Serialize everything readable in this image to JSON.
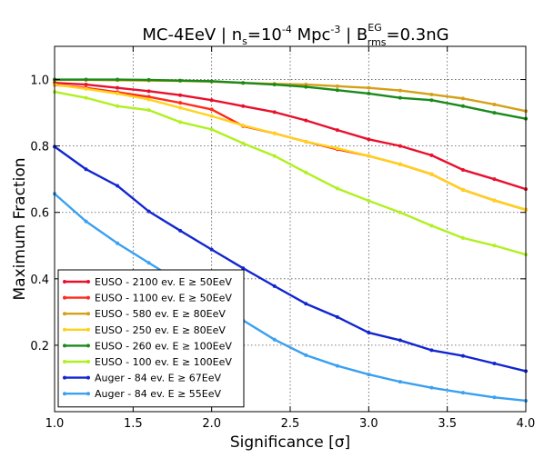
{
  "chart_data": {
    "type": "line",
    "title": {
      "prefix": "MC-4EeV | n",
      "n_sub": "s",
      "mid1": "=10",
      "exp": "-4",
      "mid2": " Mpc",
      "unit_exp": "-3",
      "mid3": "  | B",
      "b_sup": "EG",
      "b_sub": "rms",
      "suffix": "=0.3nG"
    },
    "xlabel": "Significance [σ]",
    "ylabel": "Maximum Fraction",
    "xlim": [
      1.0,
      4.0
    ],
    "ylim": [
      0.0,
      1.1
    ],
    "xticks": [
      1.0,
      1.5,
      2.0,
      2.5,
      3.0,
      3.5,
      4.0
    ],
    "xtick_labels": [
      "1.0",
      "1.5",
      "2.0",
      "2.5",
      "3.0",
      "3.5",
      "4.0"
    ],
    "yticks": [
      0.2,
      0.4,
      0.6,
      0.8,
      1.0
    ],
    "ytick_labels": [
      "0.2",
      "0.4",
      "0.6",
      "0.8",
      "1.0"
    ],
    "grid": true,
    "legend_position": "bottom-left",
    "x": [
      1.0,
      1.2,
      1.4,
      1.6,
      1.8,
      2.0,
      2.2,
      2.4,
      2.6,
      2.8,
      3.0,
      3.2,
      3.4,
      3.6,
      3.8,
      4.0
    ],
    "series": [
      {
        "name": "EUSO - 2100 ev. E  ≥ 50EeV",
        "color": "#e8112d",
        "values": [
          0.99,
          0.985,
          0.975,
          0.965,
          0.953,
          0.938,
          0.92,
          0.902,
          0.877,
          0.848,
          0.82,
          0.8,
          0.772,
          0.728,
          0.7,
          0.67
        ]
      },
      {
        "name": "EUSO - 1100 ev. E  ≥ 50EeV",
        "color": "#ff2a1a",
        "values": [
          0.984,
          0.975,
          0.962,
          0.948,
          0.93,
          0.91,
          0.86,
          0.838,
          0.813,
          0.79,
          0.77,
          0.745,
          0.715,
          0.668,
          0.636,
          0.608
        ]
      },
      {
        "name": "EUSO - 580 ev. E  ≥ 80EeV",
        "color": "#d4a017",
        "values": [
          0.999,
          0.999,
          0.998,
          0.997,
          0.996,
          0.994,
          0.99,
          0.987,
          0.985,
          0.98,
          0.975,
          0.967,
          0.955,
          0.943,
          0.925,
          0.905
        ]
      },
      {
        "name": "EUSO - 250 ev. E  ≥ 80EeV",
        "color": "#ffd21a",
        "values": [
          0.985,
          0.972,
          0.958,
          0.94,
          0.915,
          0.89,
          0.862,
          0.838,
          0.813,
          0.793,
          0.77,
          0.745,
          0.715,
          0.668,
          0.636,
          0.608
        ]
      },
      {
        "name": "EUSO - 260 ev. E  ≥ 100EeV",
        "color": "#1a8a1a",
        "values": [
          1.0,
          1.0,
          1.0,
          0.999,
          0.997,
          0.995,
          0.99,
          0.985,
          0.978,
          0.968,
          0.958,
          0.945,
          0.938,
          0.92,
          0.9,
          0.882
        ]
      },
      {
        "name": "EUSO - 100 ev. E  ≥ 100EeV",
        "color": "#b0f020",
        "values": [
          0.963,
          0.945,
          0.92,
          0.908,
          0.872,
          0.85,
          0.808,
          0.77,
          0.72,
          0.672,
          0.635,
          0.6,
          0.56,
          0.523,
          0.5,
          0.473
        ]
      },
      {
        "name": "Auger - 84 ev. E  ≥ 67EeV",
        "color": "#1226d0",
        "values": [
          0.798,
          0.73,
          0.68,
          0.603,
          0.545,
          0.488,
          0.432,
          0.378,
          0.325,
          0.285,
          0.238,
          0.215,
          0.185,
          0.168,
          0.145,
          0.122
        ]
      },
      {
        "name": "Auger - 84 ev. E  ≥ 55EeV",
        "color": "#3aa0f0",
        "values": [
          0.656,
          0.573,
          0.507,
          0.448,
          0.39,
          0.34,
          0.275,
          0.217,
          0.17,
          0.138,
          0.112,
          0.09,
          0.072,
          0.057,
          0.043,
          0.033
        ]
      }
    ]
  }
}
